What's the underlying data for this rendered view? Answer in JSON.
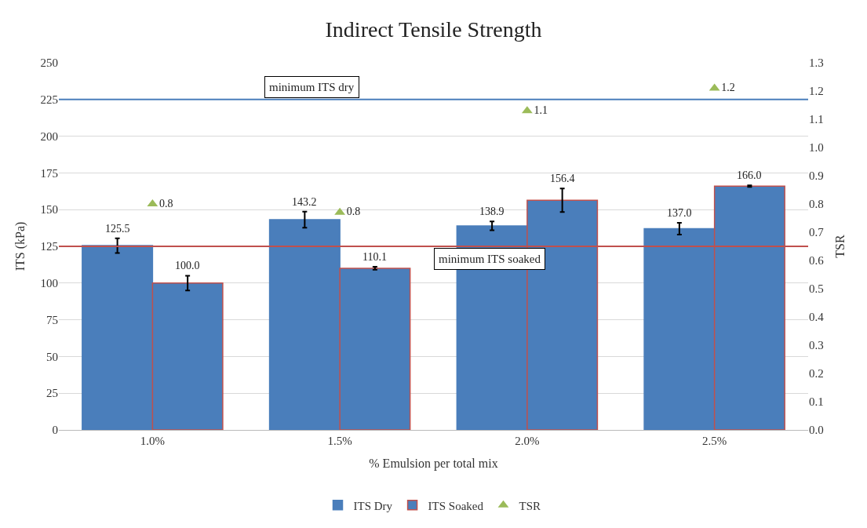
{
  "chart_data": {
    "type": "bar",
    "title": "Indirect Tensile Strength",
    "xlabel": "% Emulsion per total mix",
    "ylabel": "ITS (kPa)",
    "y2label": "TSR",
    "categories": [
      "1.0%",
      "1.5%",
      "2.0%",
      "2.5%"
    ],
    "series": [
      {
        "name": "ITS Dry",
        "color": "#4a7ebb",
        "values": [
          125.5,
          143.2,
          138.9,
          137.0
        ],
        "errors": [
          5,
          5.5,
          3,
          4
        ],
        "value_labels": [
          "125.5",
          "143.2",
          "138.9",
          "137.0"
        ]
      },
      {
        "name": "ITS Soaked",
        "color": "#4a7ebb",
        "values": [
          100.0,
          110.1,
          156.4,
          166.0
        ],
        "errors": [
          5,
          1,
          8,
          0.5
        ],
        "value_labels": [
          "100.0",
          "110.1",
          "156.4",
          "166.0"
        ]
      },
      {
        "name": "TSR",
        "type": "scatter",
        "axis": "y2",
        "color": "#9bbb59",
        "marker": "triangle",
        "values": [
          0.8,
          0.77,
          1.13,
          1.21
        ],
        "value_labels": [
          "0.8",
          "0.8",
          "1.1",
          "1.2"
        ]
      }
    ],
    "ylim": [
      0,
      250
    ],
    "yticks": [
      0,
      25,
      50,
      75,
      100,
      125,
      150,
      175,
      200,
      225,
      250
    ],
    "y2lim": [
      0,
      1.3
    ],
    "y2ticks": [
      {
        "value": 0,
        "label": "0.0"
      },
      0.1,
      0.2,
      0.3,
      0.4,
      0.5,
      0.6,
      0.7,
      0.8,
      0.9,
      {
        "value": 1,
        "label": "1.0"
      },
      1.1,
      1.2,
      1.3
    ],
    "ref_lines": [
      {
        "axis": "y",
        "value": 225,
        "label": "minimum ITS dry",
        "color": "#4a7ebb"
      },
      {
        "axis": "y",
        "value": 125,
        "label": "minimum ITS soaked",
        "color": "#c0504d"
      }
    ],
    "grid": "y",
    "legend": "bottom"
  }
}
